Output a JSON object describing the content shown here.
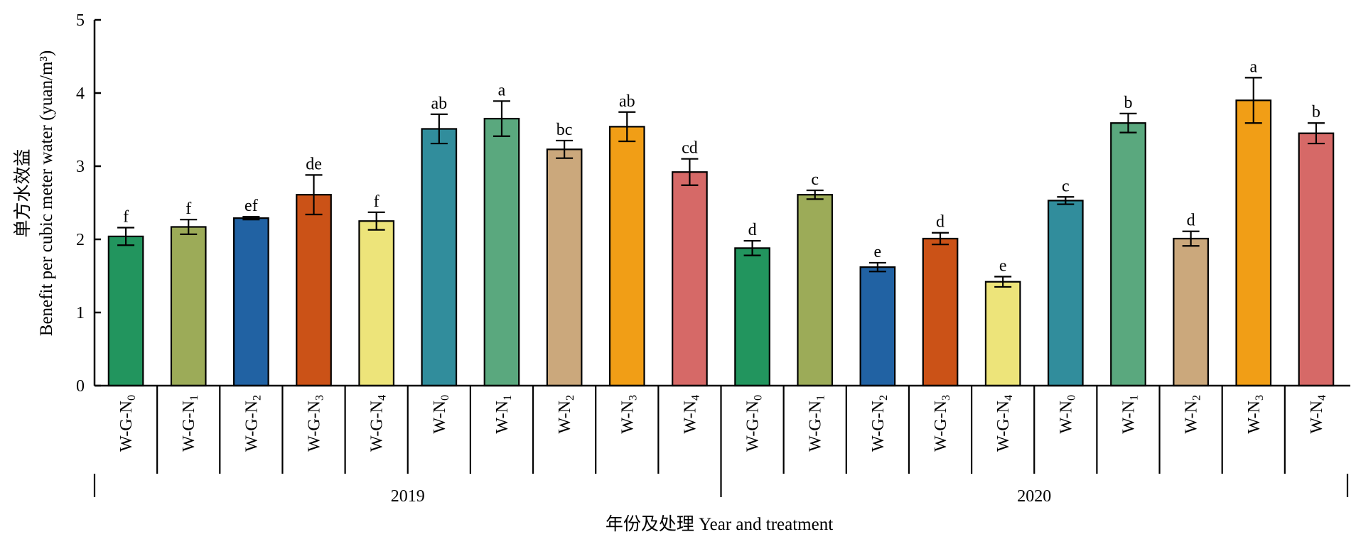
{
  "chart_data": {
    "type": "bar",
    "ylabel_cn": "单方水效益",
    "ylabel_en": "Benefit per cubic meter water (yuan/m³)",
    "xlabel": "年份及处理 Year and treatment",
    "ylim": [
      0,
      5
    ],
    "yticks": [
      "0",
      "1",
      "2",
      "3",
      "4",
      "5"
    ],
    "grid": false,
    "groups": [
      {
        "label": "2019",
        "bars": [
          {
            "category": "W-G-N0",
            "base": "W-G-N",
            "sub": "0",
            "value": 2.04,
            "error": 0.12,
            "sig": "f",
            "color": "#22955e"
          },
          {
            "category": "W-G-N1",
            "base": "W-G-N",
            "sub": "1",
            "value": 2.17,
            "error": 0.1,
            "sig": "f",
            "color": "#9cab58"
          },
          {
            "category": "W-G-N2",
            "base": "W-G-N",
            "sub": "2",
            "value": 2.29,
            "error": 0.02,
            "sig": "ef",
            "color": "#2162a3"
          },
          {
            "category": "W-G-N3",
            "base": "W-G-N",
            "sub": "3",
            "value": 2.61,
            "error": 0.27,
            "sig": "de",
            "color": "#cb5217"
          },
          {
            "category": "W-G-N4",
            "base": "W-G-N",
            "sub": "4",
            "value": 2.25,
            "error": 0.12,
            "sig": "f",
            "color": "#ede47a"
          },
          {
            "category": "W-N0",
            "base": "W-N",
            "sub": "0",
            "value": 3.51,
            "error": 0.2,
            "sig": "ab",
            "color": "#318d9c"
          },
          {
            "category": "W-N1",
            "base": "W-N",
            "sub": "1",
            "value": 3.65,
            "error": 0.24,
            "sig": "a",
            "color": "#5aa87e"
          },
          {
            "category": "W-N2",
            "base": "W-N",
            "sub": "2",
            "value": 3.23,
            "error": 0.12,
            "sig": "bc",
            "color": "#cba87c"
          },
          {
            "category": "W-N3",
            "base": "W-N",
            "sub": "3",
            "value": 3.54,
            "error": 0.2,
            "sig": "ab",
            "color": "#f19e16"
          },
          {
            "category": "W-N4",
            "base": "W-N",
            "sub": "4",
            "value": 2.92,
            "error": 0.18,
            "sig": "cd",
            "color": "#d66967"
          }
        ]
      },
      {
        "label": "2020",
        "bars": [
          {
            "category": "W-G-N0",
            "base": "W-G-N",
            "sub": "0",
            "value": 1.88,
            "error": 0.1,
            "sig": "d",
            "color": "#22955e"
          },
          {
            "category": "W-G-N1",
            "base": "W-G-N",
            "sub": "1",
            "value": 2.61,
            "error": 0.06,
            "sig": "c",
            "color": "#9cab58"
          },
          {
            "category": "W-G-N2",
            "base": "W-G-N",
            "sub": "2",
            "value": 1.62,
            "error": 0.06,
            "sig": "e",
            "color": "#2162a3"
          },
          {
            "category": "W-G-N3",
            "base": "W-G-N",
            "sub": "3",
            "value": 2.01,
            "error": 0.08,
            "sig": "d",
            "color": "#cb5217"
          },
          {
            "category": "W-G-N4",
            "base": "W-G-N",
            "sub": "4",
            "value": 1.42,
            "error": 0.07,
            "sig": "e",
            "color": "#ede47a"
          },
          {
            "category": "W-N0",
            "base": "W-N",
            "sub": "0",
            "value": 2.53,
            "error": 0.05,
            "sig": "c",
            "color": "#318d9c"
          },
          {
            "category": "W-N1",
            "base": "W-N",
            "sub": "1",
            "value": 3.59,
            "error": 0.13,
            "sig": "b",
            "color": "#5aa87e"
          },
          {
            "category": "W-N2",
            "base": "W-N",
            "sub": "2",
            "value": 2.01,
            "error": 0.1,
            "sig": "d",
            "color": "#cba87c"
          },
          {
            "category": "W-N3",
            "base": "W-N",
            "sub": "3",
            "value": 3.9,
            "error": 0.31,
            "sig": "a",
            "color": "#f19e16"
          },
          {
            "category": "W-N4",
            "base": "W-N",
            "sub": "4",
            "value": 3.45,
            "error": 0.14,
            "sig": "b",
            "color": "#d66967"
          }
        ]
      }
    ]
  }
}
